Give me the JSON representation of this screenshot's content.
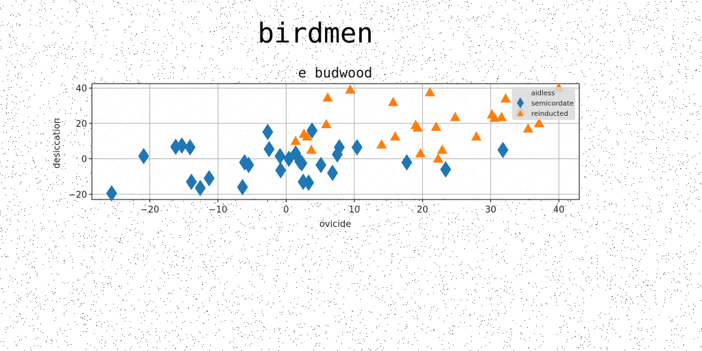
{
  "figure": {
    "suptitle": "birdmen"
  },
  "chart_data": {
    "type": "scatter",
    "title": "e budwood",
    "xlabel": "ovicide",
    "ylabel": "desiccation",
    "xlim": [
      -28.5,
      43
    ],
    "ylim": [
      -23,
      42.5
    ],
    "xticks": [
      -20,
      -10,
      0,
      10,
      20,
      30,
      40
    ],
    "xtick_labels": [
      "−20",
      "−10",
      "0",
      "10",
      "20",
      "30",
      "40"
    ],
    "yticks": [
      -20,
      0,
      20,
      40
    ],
    "ytick_labels": [
      "−20",
      "0",
      "20",
      "40"
    ],
    "grid": true,
    "legend": {
      "placement": "top-right",
      "title": "aidless",
      "entries": [
        "semicordate",
        "reinducted"
      ]
    },
    "series": [
      {
        "name": "semicordate",
        "marker": "thin_diamond",
        "color": "#1f77b4",
        "points": [
          [
            -25.6,
            -19.5
          ],
          [
            -20.9,
            1.5
          ],
          [
            -16.2,
            6.8
          ],
          [
            -15.3,
            7.5
          ],
          [
            -14.1,
            6.5
          ],
          [
            -13.9,
            -13.0
          ],
          [
            -12.6,
            -16.5
          ],
          [
            -11.3,
            -11.0
          ],
          [
            -6.4,
            -16.0
          ],
          [
            -6.1,
            -2.0
          ],
          [
            -5.5,
            -3.5
          ],
          [
            -2.7,
            15.2
          ],
          [
            -2.5,
            5.5
          ],
          [
            -0.9,
            1.5
          ],
          [
            -0.8,
            -6.5
          ],
          [
            0.4,
            0.0
          ],
          [
            1.4,
            3.0
          ],
          [
            2.0,
            -1.5
          ],
          [
            2.3,
            -2.5
          ],
          [
            2.5,
            -13.0
          ],
          [
            3.3,
            -13.5
          ],
          [
            3.8,
            16.0
          ],
          [
            5.1,
            -3.5
          ],
          [
            6.8,
            -8.0
          ],
          [
            7.5,
            2.5
          ],
          [
            7.8,
            6.5
          ],
          [
            10.4,
            6.5
          ],
          [
            17.7,
            -2.0
          ],
          [
            23.4,
            -6.0
          ],
          [
            31.8,
            5.0
          ]
        ]
      },
      {
        "name": "reinducted",
        "marker": "triangle",
        "color": "#ff7f0e",
        "points": [
          [
            1.4,
            10.0
          ],
          [
            2.6,
            14.0
          ],
          [
            3.1,
            12.5
          ],
          [
            3.7,
            5.0
          ],
          [
            5.9,
            19.5
          ],
          [
            6.1,
            34.5
          ],
          [
            9.4,
            39.0
          ],
          [
            14.0,
            8.0
          ],
          [
            15.7,
            32.0
          ],
          [
            16.0,
            12.5
          ],
          [
            19.0,
            19.0
          ],
          [
            19.3,
            17.5
          ],
          [
            19.7,
            3.0
          ],
          [
            21.1,
            37.5
          ],
          [
            22.0,
            18.0
          ],
          [
            22.3,
            0.0
          ],
          [
            22.9,
            5.0
          ],
          [
            24.8,
            23.5
          ],
          [
            27.9,
            12.5
          ],
          [
            30.2,
            25.0
          ],
          [
            30.6,
            23.0
          ],
          [
            31.6,
            23.5
          ],
          [
            32.2,
            34.0
          ],
          [
            34.4,
            27.0
          ],
          [
            35.5,
            17.0
          ],
          [
            37.1,
            20.0
          ],
          [
            40.0,
            40.0
          ]
        ]
      }
    ]
  }
}
